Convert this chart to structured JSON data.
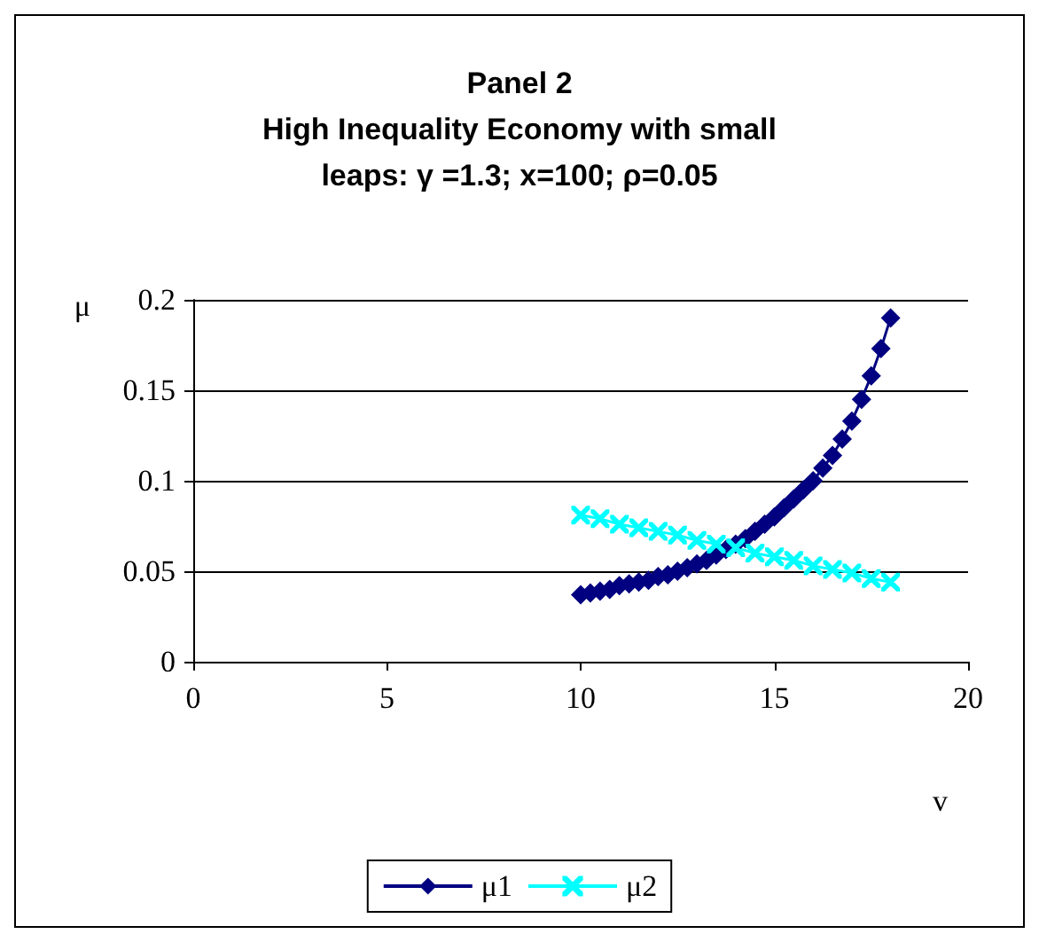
{
  "chart_data": {
    "type": "line",
    "title": "Panel 2\nHigh Inequality Economy with small\nleaps: γ =1.3; x=100; ρ=0.05",
    "xlabel": "v",
    "ylabel": "μ",
    "xlim": [
      0,
      20
    ],
    "xticks": [
      0,
      5,
      10,
      15,
      20
    ],
    "ylim": [
      0,
      0.2
    ],
    "yticks": [
      0,
      0.05,
      0.1,
      0.15,
      0.2
    ],
    "grid": "y",
    "legend": "bottom",
    "series": [
      {
        "name": "μ1",
        "color": "#000080",
        "marker": "diamond",
        "x": [
          10,
          10.25,
          10.5,
          10.75,
          11,
          11.25,
          11.5,
          11.75,
          12,
          12.25,
          12.5,
          12.75,
          13,
          13.25,
          13.5,
          13.75,
          14,
          14.25,
          14.5,
          14.75,
          15,
          15.25,
          15.5,
          15.75,
          16,
          16.25,
          16.5,
          16.75,
          17,
          17.25,
          17.5,
          17.75,
          18
        ],
        "values": [
          0.037,
          0.038,
          0.039,
          0.04,
          0.042,
          0.043,
          0.044,
          0.045,
          0.047,
          0.048,
          0.05,
          0.052,
          0.054,
          0.056,
          0.059,
          0.062,
          0.065,
          0.068,
          0.072,
          0.076,
          0.08,
          0.085,
          0.09,
          0.095,
          0.1,
          0.107,
          0.114,
          0.123,
          0.133,
          0.145,
          0.158,
          0.173,
          0.19
        ]
      },
      {
        "name": "μ2",
        "color": "#00ffff",
        "marker": "cross",
        "x": [
          10,
          10.5,
          11,
          11.5,
          12,
          12.5,
          13,
          13.5,
          14,
          14.5,
          15,
          15.5,
          16,
          16.5,
          17,
          17.5,
          18
        ],
        "values": [
          0.081,
          0.079,
          0.076,
          0.074,
          0.072,
          0.07,
          0.067,
          0.065,
          0.063,
          0.06,
          0.058,
          0.056,
          0.053,
          0.051,
          0.049,
          0.046,
          0.044
        ]
      }
    ]
  }
}
